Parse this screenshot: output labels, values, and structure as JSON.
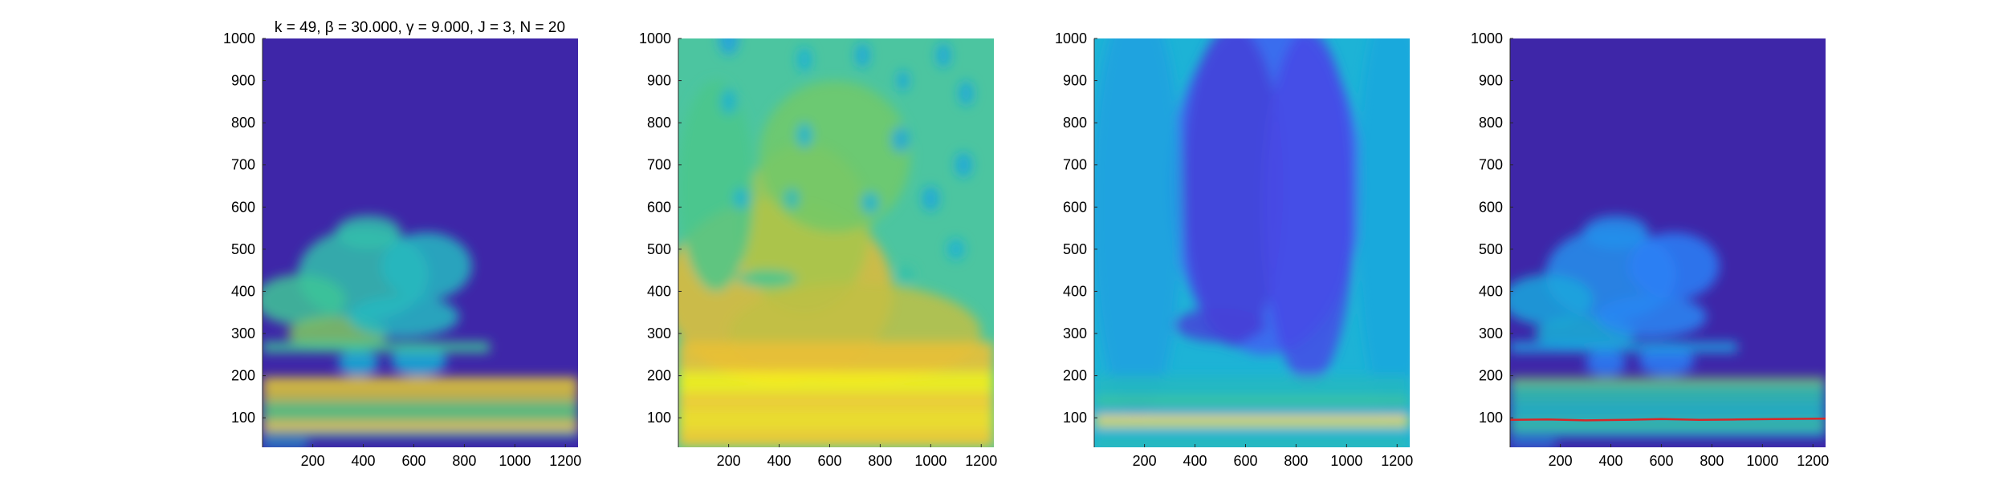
{
  "figure": {
    "title": "k = 49, β = 30.000, γ = 9.000, J = 3, N = 20",
    "colormap": "parula"
  },
  "chart_data": [
    {
      "type": "heatmap",
      "name": "panel-1",
      "title": "k = 49, β = 30.000, γ = 9.000, J = 3, N = 20",
      "xlim": [
        1,
        1250
      ],
      "ylim": [
        30,
        1000
      ],
      "xticks": [
        200,
        400,
        600,
        800,
        1000,
        1200
      ],
      "yticks": [
        100,
        200,
        300,
        400,
        500,
        600,
        700,
        800,
        900,
        1000
      ],
      "background_color": "#3e26a8",
      "bands": [
        {
          "y": [
            30,
            45
          ],
          "x": [
            1,
            180
          ],
          "level": 0.45
        },
        {
          "y": [
            55,
            70
          ],
          "x": [
            1,
            1250
          ],
          "level": 0.55
        },
        {
          "y": [
            70,
            90
          ],
          "x": [
            1,
            1250
          ],
          "level": 0.9
        },
        {
          "y": [
            90,
            140
          ],
          "x": [
            1,
            1250
          ],
          "level": 0.65
        },
        {
          "y": [
            140,
            180
          ],
          "x": [
            1,
            1250
          ],
          "level": 0.8
        },
        {
          "y": [
            180,
            195
          ],
          "x": [
            1,
            1250
          ],
          "level": 0.95
        },
        {
          "y": [
            255,
            280
          ],
          "x": [
            1,
            900
          ],
          "level": 0.6
        }
      ],
      "blobs": [
        {
          "x": 400,
          "y": 440,
          "rx": 260,
          "ry": 110,
          "level": 0.55
        },
        {
          "x": 650,
          "y": 460,
          "rx": 180,
          "ry": 80,
          "level": 0.5
        },
        {
          "x": 150,
          "y": 380,
          "rx": 180,
          "ry": 60,
          "level": 0.6
        },
        {
          "x": 300,
          "y": 300,
          "rx": 200,
          "ry": 40,
          "level": 0.7
        },
        {
          "x": 560,
          "y": 340,
          "rx": 220,
          "ry": 50,
          "level": 0.5
        },
        {
          "x": 420,
          "y": 540,
          "rx": 130,
          "ry": 40,
          "level": 0.55
        },
        {
          "x": 620,
          "y": 235,
          "rx": 110,
          "ry": 35,
          "level": 0.45
        },
        {
          "x": 380,
          "y": 230,
          "rx": 80,
          "ry": 30,
          "level": 0.45
        }
      ],
      "overlay_line": null
    },
    {
      "type": "heatmap",
      "name": "panel-2",
      "title": "",
      "xlim": [
        1,
        1250
      ],
      "ylim": [
        30,
        1000
      ],
      "xticks": [
        200,
        400,
        600,
        800,
        1000,
        1200
      ],
      "yticks": [
        100,
        200,
        300,
        400,
        500,
        600,
        700,
        800,
        900,
        1000
      ],
      "background_color": "#4cc5a0",
      "bands": [
        {
          "y": [
            30,
            70
          ],
          "x": [
            1,
            1250
          ],
          "level": 0.9
        },
        {
          "y": [
            70,
            120
          ],
          "x": [
            1,
            1250
          ],
          "level": 0.95
        },
        {
          "y": [
            120,
            160
          ],
          "x": [
            1,
            1250
          ],
          "level": 0.92
        },
        {
          "y": [
            160,
            210
          ],
          "x": [
            1,
            1250
          ],
          "level": 0.98
        },
        {
          "y": [
            210,
            280
          ],
          "x": [
            1,
            1250
          ],
          "level": 0.85
        }
      ],
      "blobs": [
        {
          "x": 400,
          "y": 400,
          "rx": 450,
          "ry": 220,
          "level": 0.82
        },
        {
          "x": 500,
          "y": 550,
          "rx": 260,
          "ry": 200,
          "level": 0.75
        },
        {
          "x": 700,
          "y": 300,
          "rx": 500,
          "ry": 120,
          "level": 0.78
        },
        {
          "x": 150,
          "y": 650,
          "rx": 150,
          "ry": 250,
          "level": 0.62
        },
        {
          "x": 620,
          "y": 720,
          "rx": 300,
          "ry": 180,
          "level": 0.68
        },
        {
          "x": 350,
          "y": 430,
          "rx": 120,
          "ry": 20,
          "level": 0.6
        },
        {
          "x": 200,
          "y": 1000,
          "rx": 40,
          "ry": 40,
          "level": 0.4
        },
        {
          "x": 500,
          "y": 950,
          "rx": 30,
          "ry": 30,
          "level": 0.45
        },
        {
          "x": 730,
          "y": 960,
          "rx": 30,
          "ry": 30,
          "level": 0.42
        },
        {
          "x": 1050,
          "y": 960,
          "rx": 30,
          "ry": 30,
          "level": 0.42
        },
        {
          "x": 1140,
          "y": 870,
          "rx": 30,
          "ry": 30,
          "level": 0.42
        },
        {
          "x": 500,
          "y": 770,
          "rx": 30,
          "ry": 30,
          "level": 0.45
        },
        {
          "x": 880,
          "y": 760,
          "rx": 35,
          "ry": 30,
          "level": 0.42
        },
        {
          "x": 1130,
          "y": 700,
          "rx": 35,
          "ry": 30,
          "level": 0.42
        },
        {
          "x": 250,
          "y": 620,
          "rx": 30,
          "ry": 25,
          "level": 0.45
        },
        {
          "x": 450,
          "y": 620,
          "rx": 30,
          "ry": 25,
          "level": 0.5
        },
        {
          "x": 760,
          "y": 610,
          "rx": 35,
          "ry": 25,
          "level": 0.45
        },
        {
          "x": 1000,
          "y": 620,
          "rx": 35,
          "ry": 30,
          "level": 0.42
        },
        {
          "x": 200,
          "y": 850,
          "rx": 30,
          "ry": 30,
          "level": 0.45
        },
        {
          "x": 890,
          "y": 900,
          "rx": 25,
          "ry": 25,
          "level": 0.42
        },
        {
          "x": 1100,
          "y": 500,
          "rx": 35,
          "ry": 25,
          "level": 0.45
        },
        {
          "x": 900,
          "y": 440,
          "rx": 35,
          "ry": 20,
          "level": 0.55
        }
      ],
      "overlay_line": null
    },
    {
      "type": "heatmap",
      "name": "panel-3",
      "title": "",
      "xlim": [
        1,
        1250
      ],
      "ylim": [
        30,
        1000
      ],
      "xticks": [
        200,
        400,
        600,
        800,
        1000,
        1200
      ],
      "yticks": [
        100,
        200,
        300,
        400,
        500,
        600,
        700,
        800,
        900,
        1000
      ],
      "background_color": "#1db3d6",
      "bands": [
        {
          "y": [
            30,
            50
          ],
          "x": [
            1,
            1250
          ],
          "level": 0.55
        },
        {
          "y": [
            50,
            75
          ],
          "x": [
            1,
            1250
          ],
          "level": 0.45
        },
        {
          "y": [
            80,
            105
          ],
          "x": [
            1,
            1250
          ],
          "level": 0.95
        },
        {
          "y": [
            105,
            125
          ],
          "x": [
            1,
            1250
          ],
          "level": 0.4
        },
        {
          "y": [
            125,
            150
          ],
          "x": [
            1,
            1250
          ],
          "level": 0.6
        },
        {
          "y": [
            150,
            200
          ],
          "x": [
            1,
            1250
          ],
          "level": 0.5
        }
      ],
      "blobs": [
        {
          "x": 680,
          "y": 650,
          "rx": 380,
          "ry": 400,
          "level": 0.2
        },
        {
          "x": 550,
          "y": 650,
          "rx": 200,
          "ry": 380,
          "level": 0.1
        },
        {
          "x": 850,
          "y": 600,
          "rx": 180,
          "ry": 420,
          "level": 0.13
        },
        {
          "x": 500,
          "y": 320,
          "rx": 180,
          "ry": 40,
          "level": 0.1
        },
        {
          "x": 170,
          "y": 600,
          "rx": 180,
          "ry": 500,
          "level": 0.4
        },
        {
          "x": 1180,
          "y": 600,
          "rx": 140,
          "ry": 500,
          "level": 0.42
        }
      ],
      "overlay_line": null
    },
    {
      "type": "heatmap",
      "name": "panel-4",
      "title": "",
      "xlim": [
        1,
        1250
      ],
      "ylim": [
        30,
        1000
      ],
      "xticks": [
        200,
        400,
        600,
        800,
        1000,
        1200
      ],
      "yticks": [
        100,
        200,
        300,
        400,
        500,
        600,
        700,
        800,
        900,
        1000
      ],
      "background_color": "#3e26a8",
      "bands": [
        {
          "y": [
            30,
            45
          ],
          "x": [
            1,
            180
          ],
          "level": 0.35
        },
        {
          "y": [
            55,
            70
          ],
          "x": [
            1,
            1250
          ],
          "level": 0.45
        },
        {
          "y": [
            70,
            90
          ],
          "x": [
            1,
            1250
          ],
          "level": 0.6
        },
        {
          "y": [
            90,
            140
          ],
          "x": [
            1,
            1250
          ],
          "level": 0.5
        },
        {
          "y": [
            140,
            180
          ],
          "x": [
            1,
            1250
          ],
          "level": 0.55
        },
        {
          "y": [
            180,
            195
          ],
          "x": [
            1,
            1250
          ],
          "level": 0.7
        },
        {
          "y": [
            255,
            280
          ],
          "x": [
            1,
            900
          ],
          "level": 0.4
        }
      ],
      "blobs": [
        {
          "x": 400,
          "y": 440,
          "rx": 260,
          "ry": 110,
          "level": 0.35
        },
        {
          "x": 650,
          "y": 460,
          "rx": 180,
          "ry": 80,
          "level": 0.3
        },
        {
          "x": 150,
          "y": 380,
          "rx": 180,
          "ry": 60,
          "level": 0.42
        },
        {
          "x": 300,
          "y": 300,
          "rx": 200,
          "ry": 40,
          "level": 0.45
        },
        {
          "x": 560,
          "y": 340,
          "rx": 220,
          "ry": 50,
          "level": 0.32
        },
        {
          "x": 420,
          "y": 540,
          "rx": 130,
          "ry": 40,
          "level": 0.35
        },
        {
          "x": 620,
          "y": 235,
          "rx": 110,
          "ry": 35,
          "level": 0.3
        },
        {
          "x": 380,
          "y": 230,
          "rx": 80,
          "ry": 30,
          "level": 0.3
        }
      ],
      "overlay_line": {
        "color": "#d62728",
        "x": [
          1,
          150,
          300,
          450,
          600,
          750,
          900,
          1050,
          1250
        ],
        "y": [
          95,
          96,
          94,
          95,
          97,
          95,
          96,
          97,
          98
        ]
      }
    }
  ]
}
